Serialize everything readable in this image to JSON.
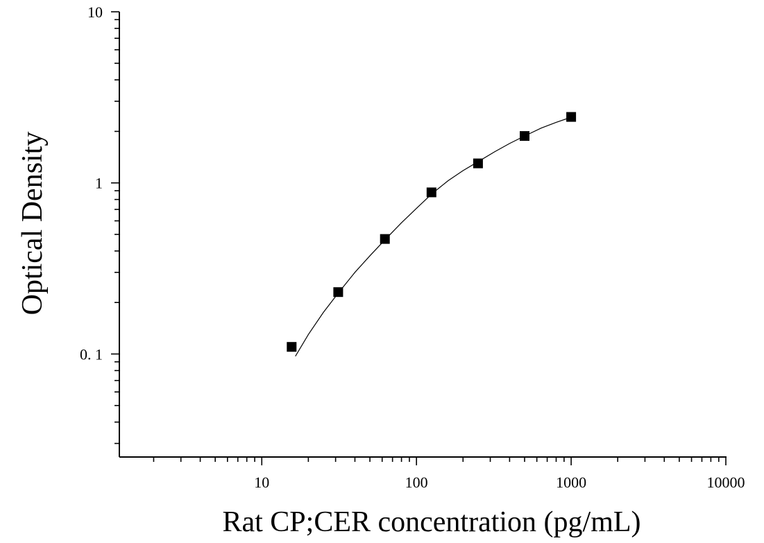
{
  "chart_data": {
    "type": "scatter",
    "title": "",
    "xlabel": "Rat CP;CER concentration (pg/mL)",
    "ylabel": "Optical Density",
    "x_scale": "log",
    "y_scale": "log",
    "xlim": [
      1.2,
      10000
    ],
    "ylim": [
      0.025,
      10
    ],
    "x_ticks": [
      10,
      100,
      1000,
      10000
    ],
    "x_tick_labels": [
      "10",
      "100",
      "1000",
      "10000"
    ],
    "y_ticks": [
      0.1,
      1,
      10
    ],
    "y_tick_labels": [
      "0. 1",
      "1",
      "10"
    ],
    "grid": false,
    "legend": "none",
    "marker": "square",
    "marker_color": "#000000",
    "series": [
      {
        "x": [
          15.6,
          31.2,
          62.5,
          125,
          250,
          500,
          1000
        ],
        "y": [
          0.11,
          0.23,
          0.47,
          0.88,
          1.3,
          1.88,
          2.43
        ]
      }
    ],
    "fit_curve": {
      "type": "line",
      "color": "#000000",
      "x": [
        16.5,
        20,
        25,
        31.2,
        40,
        50,
        62.5,
        80,
        100,
        125,
        160,
        200,
        250,
        320,
        400,
        500,
        640,
        800,
        1000
      ],
      "y": [
        0.097,
        0.13,
        0.175,
        0.227,
        0.3,
        0.375,
        0.465,
        0.585,
        0.71,
        0.86,
        1.03,
        1.18,
        1.33,
        1.52,
        1.7,
        1.88,
        2.09,
        2.26,
        2.42
      ]
    }
  }
}
